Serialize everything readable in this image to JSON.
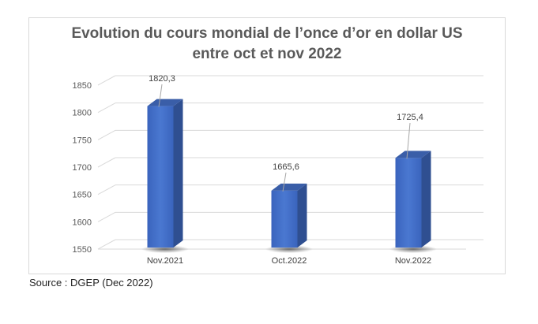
{
  "chart_data": {
    "type": "bar",
    "style": "3d-column",
    "title": "Evolution du cours mondial de l’once d’or en dollar US entre oct et nov 2022",
    "title_lines": [
      "Evolution du cours mondial de l’once d’or en dollar US",
      "entre oct et nov 2022"
    ],
    "categories": [
      "Nov.2021",
      "Oct.2022",
      "Nov.2022"
    ],
    "values": [
      1820.3,
      1665.6,
      1725.4
    ],
    "data_labels": [
      "1820,3",
      "1665,6",
      "1725,4"
    ],
    "xlabel": "",
    "ylabel": "",
    "ylim": [
      1550,
      1850
    ],
    "yticks": [
      1550,
      1600,
      1650,
      1700,
      1750,
      1800,
      1850
    ],
    "ytick_labels": [
      "1550",
      "1600",
      "1650",
      "1700",
      "1750",
      "1800",
      "1850"
    ],
    "grid": true,
    "legend": "none",
    "bar_color": "#4472c4",
    "bar_side_color": "#2f4f91",
    "bar_top_color": "#3a5ea8"
  },
  "source": "Source : DGEP (Dec 2022)"
}
